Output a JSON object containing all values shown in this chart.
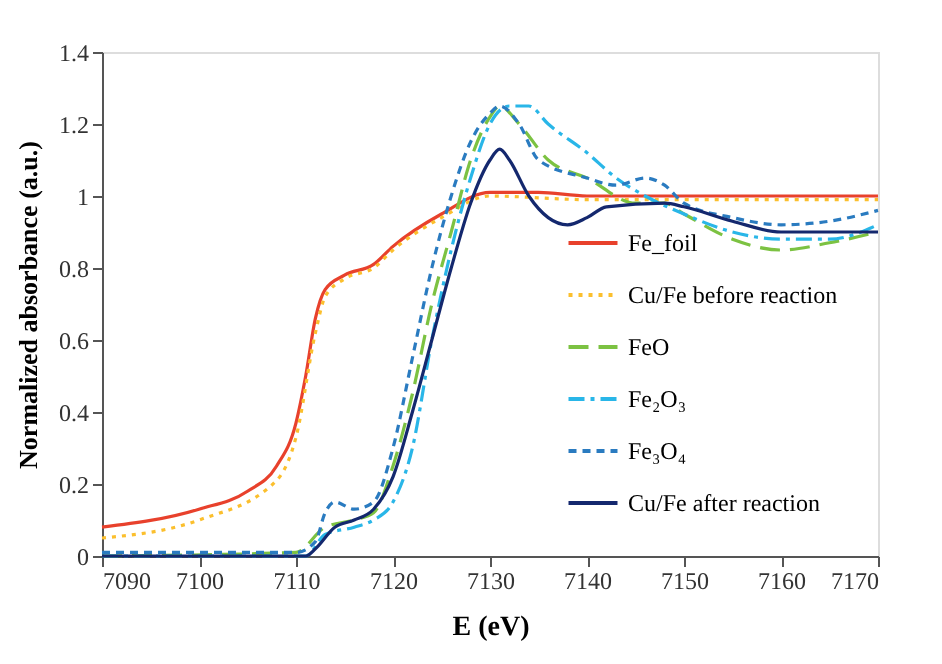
{
  "chart_data": {
    "type": "line",
    "xlabel": "E (eV)",
    "ylabel": "Normalized absorbance (a.u.)",
    "xlim": [
      7090,
      7170
    ],
    "ylim": [
      0,
      1.4
    ],
    "xticks": [
      7090,
      7100,
      7110,
      7120,
      7130,
      7140,
      7150,
      7160,
      7170
    ],
    "yticks": [
      0,
      0.2,
      0.4,
      0.6,
      0.8,
      1,
      1.2,
      1.4
    ],
    "grid": false,
    "legend": "bottom right",
    "marker": "none",
    "series": [
      {
        "name": "Fe_foil",
        "color": "#e8412c",
        "line_style": "solid",
        "x": [
          7090,
          7100,
          7105,
          7108,
          7110,
          7111,
          7112,
          7113,
          7115,
          7118,
          7120,
          7125,
          7130,
          7135,
          7140,
          7170
        ],
        "values": [
          0.08,
          0.13,
          0.18,
          0.25,
          0.37,
          0.5,
          0.66,
          0.74,
          0.78,
          0.81,
          0.86,
          0.95,
          1.01,
          1.01,
          1.0,
          1.0
        ]
      },
      {
        "name": "Cu/Fe before reaction",
        "color": "#fbbf2d",
        "line_style": "dotted",
        "x": [
          7090,
          7100,
          7108,
          7110,
          7112,
          7113,
          7115,
          7118,
          7120,
          7125,
          7130,
          7140,
          7170
        ],
        "values": [
          0.05,
          0.1,
          0.21,
          0.33,
          0.62,
          0.72,
          0.77,
          0.8,
          0.85,
          0.94,
          1.0,
          0.99,
          0.99
        ]
      },
      {
        "name": "FeO",
        "color": "#7cc242",
        "line_style": "dashed",
        "x": [
          7090,
          7110,
          7113,
          7116,
          7118,
          7120,
          7122,
          7124,
          7126,
          7128,
          7130,
          7131,
          7133,
          7136,
          7140,
          7145,
          7148,
          7150,
          7155,
          7160,
          7165,
          7170
        ],
        "values": [
          0,
          0.01,
          0.08,
          0.1,
          0.12,
          0.25,
          0.45,
          0.7,
          0.9,
          1.1,
          1.22,
          1.25,
          1.2,
          1.1,
          1.05,
          0.98,
          0.98,
          0.95,
          0.88,
          0.85,
          0.87,
          0.9
        ]
      },
      {
        "name": "Fe₂O₃",
        "color": "#29b6e8",
        "line_style": "dashdot",
        "x": [
          7090,
          7111,
          7113,
          7116,
          7118,
          7120,
          7122,
          7124,
          7126,
          7128,
          7130,
          7132,
          7134,
          7136,
          7140,
          7143,
          7146,
          7150,
          7155,
          7160,
          7165,
          7170
        ],
        "values": [
          0,
          0,
          0.06,
          0.08,
          0.1,
          0.15,
          0.3,
          0.6,
          0.85,
          1.05,
          1.2,
          1.25,
          1.25,
          1.2,
          1.12,
          1.05,
          1.0,
          0.95,
          0.9,
          0.88,
          0.88,
          0.92
        ]
      },
      {
        "name": "Fe₃O₄",
        "color": "#2a7bc0",
        "line_style": "dashed",
        "x": [
          7090,
          7110,
          7112,
          7113,
          7114,
          7116,
          7118,
          7120,
          7122,
          7124,
          7126,
          7128,
          7130,
          7131,
          7133,
          7135,
          7140,
          7143,
          7146,
          7148,
          7150,
          7155,
          7160,
          7165,
          7170
        ],
        "values": [
          0.01,
          0.01,
          0.04,
          0.12,
          0.15,
          0.13,
          0.15,
          0.3,
          0.55,
          0.8,
          1.0,
          1.15,
          1.23,
          1.25,
          1.2,
          1.1,
          1.05,
          1.03,
          1.05,
          1.03,
          0.98,
          0.94,
          0.92,
          0.93,
          0.96
        ]
      },
      {
        "name": "Cu/Fe after reaction",
        "color": "#14286e",
        "line_style": "solid",
        "x": [
          7090,
          7111,
          7112,
          7114,
          7116,
          7118,
          7120,
          7122,
          7124,
          7126,
          7128,
          7130,
          7131,
          7132,
          7134,
          7136,
          7138,
          7140,
          7142,
          7148,
          7150,
          7155,
          7160,
          7170
        ],
        "values": [
          0,
          0,
          0.02,
          0.08,
          0.1,
          0.13,
          0.22,
          0.4,
          0.6,
          0.8,
          0.98,
          1.1,
          1.13,
          1.1,
          1.0,
          0.94,
          0.92,
          0.94,
          0.97,
          0.98,
          0.97,
          0.93,
          0.9,
          0.9
        ]
      }
    ]
  }
}
